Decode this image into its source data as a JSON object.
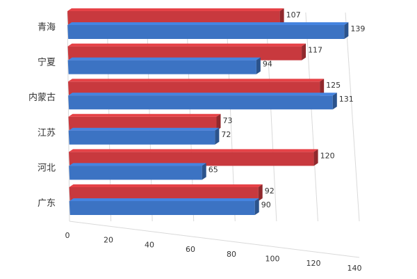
{
  "chart_data": {
    "type": "bar",
    "orientation": "horizontal",
    "style": "3d-clustered",
    "categories": [
      "青海",
      "宁夏",
      "内蒙古",
      "江苏",
      "河北",
      "广东"
    ],
    "series": [
      {
        "color": "#c8393e",
        "values": [
          107,
          117,
          125,
          73,
          120,
          92
        ]
      },
      {
        "color": "#3c73c3",
        "values": [
          139,
          94,
          131,
          72,
          65,
          90
        ]
      }
    ],
    "xlim": [
      0,
      140
    ],
    "xticks": [
      0,
      20,
      40,
      60,
      80,
      100,
      120,
      140
    ],
    "grid": true,
    "legend": "none"
  }
}
